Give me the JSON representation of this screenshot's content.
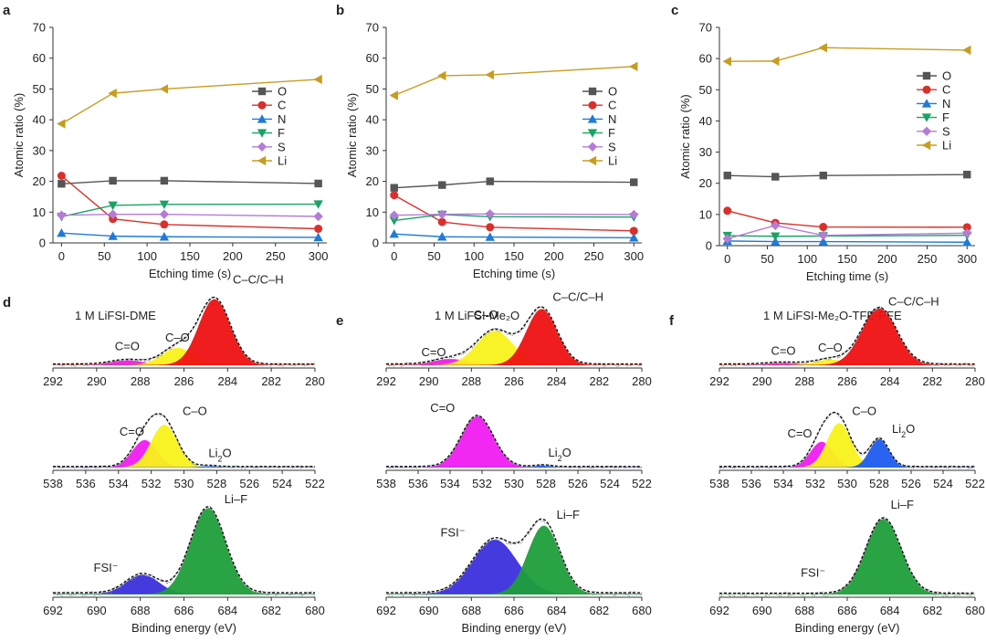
{
  "colors": {
    "O": "#555555",
    "C": "#d9302c",
    "N": "#1f7bd6",
    "F": "#1aa266",
    "S": "#b57cd6",
    "Li": "#c79d1f",
    "yellow": "#f8f21a",
    "red": "#ee1111",
    "magenta": "#f01cf0",
    "blue": "#1e5cf0",
    "green": "#1e9e3a",
    "purpleblue": "#3a2fdc"
  },
  "panels": {
    "a": "a",
    "b": "b",
    "c": "c",
    "d": "d",
    "e": "e",
    "f": "f"
  },
  "chart_data": [
    {
      "id": "a",
      "type": "line",
      "panel_letter": "a",
      "xlabel": "Etching time (s)",
      "ylabel": "Atomic ratio (%)",
      "xlim": [
        -10,
        310
      ],
      "ylim": [
        0,
        70
      ],
      "xticks": [
        "0",
        "50",
        "100",
        "150",
        "200",
        "250",
        "300"
      ],
      "yticks": [
        "0",
        "10",
        "20",
        "30",
        "40",
        "50",
        "60",
        "70"
      ],
      "x": [
        0,
        60,
        120,
        300
      ],
      "legend_position": "right",
      "series": [
        {
          "name": "O",
          "values": [
            19.2,
            20.2,
            20.2,
            19.3
          ]
        },
        {
          "name": "C",
          "values": [
            21.8,
            7.8,
            6.0,
            4.6
          ]
        },
        {
          "name": "N",
          "values": [
            3.2,
            2.2,
            2.0,
            1.8
          ]
        },
        {
          "name": "F",
          "values": [
            8.5,
            12.2,
            12.5,
            12.6
          ]
        },
        {
          "name": "S",
          "values": [
            9.0,
            9.3,
            9.3,
            8.6
          ]
        },
        {
          "name": "Li",
          "values": [
            38.7,
            48.6,
            50.0,
            53.1
          ]
        }
      ]
    },
    {
      "id": "b",
      "type": "line",
      "panel_letter": "b",
      "xlabel": "Etching time (s)",
      "ylabel": "Atomic ratio (%)",
      "xlim": [
        -10,
        310
      ],
      "ylim": [
        0,
        70
      ],
      "xticks": [
        "0",
        "50",
        "100",
        "150",
        "200",
        "250",
        "300"
      ],
      "yticks": [
        "0",
        "10",
        "20",
        "30",
        "40",
        "50",
        "60",
        "70"
      ],
      "x": [
        0,
        60,
        120,
        300
      ],
      "legend_position": "right",
      "series": [
        {
          "name": "O",
          "values": [
            17.9,
            18.8,
            20.0,
            19.7
          ]
        },
        {
          "name": "C",
          "values": [
            15.5,
            6.8,
            5.1,
            3.9
          ]
        },
        {
          "name": "N",
          "values": [
            2.9,
            2.0,
            1.9,
            1.7
          ]
        },
        {
          "name": "F",
          "values": [
            7.3,
            9.2,
            8.5,
            8.4
          ]
        },
        {
          "name": "S",
          "values": [
            9.0,
            9.3,
            9.4,
            9.2
          ]
        },
        {
          "name": "Li",
          "values": [
            47.9,
            54.3,
            54.6,
            57.3
          ]
        }
      ]
    },
    {
      "id": "c",
      "type": "line",
      "panel_letter": "c",
      "xlabel": "Etching time (s)",
      "ylabel": "Atomic ratio (%)",
      "xlim": [
        -10,
        310
      ],
      "ylim": [
        0,
        70
      ],
      "xticks": [
        "0",
        "50",
        "100",
        "150",
        "200",
        "250",
        "300"
      ],
      "yticks": [
        "0",
        "10",
        "20",
        "30",
        "40",
        "50",
        "60",
        "70"
      ],
      "x": [
        0,
        60,
        120,
        300
      ],
      "legend_position": "right",
      "series": [
        {
          "name": "O",
          "values": [
            22.5,
            22.1,
            22.5,
            22.8
          ]
        },
        {
          "name": "C",
          "values": [
            11.2,
            7.3,
            6.0,
            5.9
          ]
        },
        {
          "name": "N",
          "values": [
            1.5,
            1.3,
            1.3,
            1.1
          ]
        },
        {
          "name": "F",
          "values": [
            3.2,
            3.0,
            3.1,
            3.3
          ]
        },
        {
          "name": "S",
          "values": [
            2.2,
            6.5,
            3.3,
            4.0
          ]
        },
        {
          "name": "Li",
          "values": [
            59.1,
            59.2,
            63.5,
            62.7
          ]
        }
      ]
    },
    {
      "id": "d1",
      "type": "xps",
      "panel_letter": "d",
      "title": "1 M LiFSI-DME",
      "xlim": [
        292,
        280
      ],
      "xticks": [
        "292",
        "290",
        "288",
        "286",
        "284",
        "282",
        "280"
      ],
      "baseline": 0.02,
      "peaks": [
        {
          "label": "C=O",
          "center": 288.6,
          "height": 0.07,
          "sigma": 0.75,
          "color": "magenta"
        },
        {
          "label": "C–O",
          "center": 286.3,
          "height": 0.26,
          "sigma": 0.7,
          "color": "yellow"
        },
        {
          "label": "C–C/C–H",
          "center": 284.6,
          "height": 1.0,
          "sigma": 0.72,
          "color": "red"
        }
      ]
    },
    {
      "id": "d2",
      "type": "xps",
      "panel_letter": "",
      "title": "",
      "xlim": [
        538,
        522
      ],
      "xticks": [
        "538",
        "536",
        "534",
        "532",
        "530",
        "528",
        "526",
        "524",
        "522"
      ],
      "baseline": 0.02,
      "peaks": [
        {
          "label": "C=O",
          "center": 532.4,
          "height": 0.48,
          "sigma": 0.75,
          "color": "magenta"
        },
        {
          "label": "C–O",
          "center": 531.2,
          "height": 0.75,
          "sigma": 0.8,
          "color": "yellow"
        },
        {
          "label": "Li2O",
          "center": 528.5,
          "height": 0.02,
          "sigma": 0.5,
          "color": "blue"
        }
      ]
    },
    {
      "id": "d3",
      "type": "xps",
      "panel_letter": "",
      "title": "",
      "xlim": [
        692,
        680
      ],
      "xticks": [
        "692",
        "690",
        "688",
        "686",
        "684",
        "682",
        "680"
      ],
      "baseline": 0.02,
      "peaks": [
        {
          "label": "FSI⁻",
          "center": 687.9,
          "height": 0.22,
          "sigma": 0.75,
          "color": "purpleblue"
        },
        {
          "label": "Li–F",
          "center": 684.9,
          "height": 0.98,
          "sigma": 0.8,
          "color": "green"
        }
      ]
    },
    {
      "id": "e1",
      "type": "xps",
      "panel_letter": "e",
      "title": "1 M LiFSI-Me₂O",
      "xlim": [
        292,
        280
      ],
      "xticks": [
        "292",
        "290",
        "288",
        "286",
        "284",
        "282",
        "280"
      ],
      "baseline": 0.02,
      "peaks": [
        {
          "label": "C=O",
          "center": 289.0,
          "height": 0.09,
          "sigma": 0.8,
          "color": "magenta"
        },
        {
          "label": "C–O",
          "center": 286.9,
          "height": 0.52,
          "sigma": 0.85,
          "color": "yellow"
        },
        {
          "label": "C–C/C–H",
          "center": 284.7,
          "height": 0.85,
          "sigma": 0.72,
          "color": "red"
        }
      ]
    },
    {
      "id": "e2",
      "type": "xps",
      "panel_letter": "",
      "title": "",
      "xlim": [
        538,
        522
      ],
      "xticks": [
        "538",
        "536",
        "534",
        "532",
        "530",
        "528",
        "526",
        "524",
        "522"
      ],
      "baseline": 0.02,
      "peaks": [
        {
          "label": "C=O",
          "center": 532.3,
          "height": 0.9,
          "sigma": 1.0,
          "color": "magenta"
        },
        {
          "label": "Li2O",
          "center": 528.2,
          "height": 0.03,
          "sigma": 0.5,
          "color": "blue"
        }
      ]
    },
    {
      "id": "e3",
      "type": "xps",
      "panel_letter": "",
      "title": "",
      "xlim": [
        692,
        680
      ],
      "xticks": [
        "692",
        "690",
        "688",
        "686",
        "684",
        "682",
        "680"
      ],
      "baseline": 0.02,
      "peaks": [
        {
          "label": "FSI⁻",
          "center": 686.9,
          "height": 0.62,
          "sigma": 1.05,
          "color": "purpleblue"
        },
        {
          "label": "Li–F",
          "center": 684.6,
          "height": 0.78,
          "sigma": 0.75,
          "color": "green"
        }
      ]
    },
    {
      "id": "f1",
      "type": "xps",
      "panel_letter": "f",
      "title": "1 M LiFSI-Me₂O-TFE-PFE",
      "xlim": [
        292,
        280
      ],
      "xticks": [
        "292",
        "290",
        "288",
        "286",
        "284",
        "282",
        "280"
      ],
      "baseline": 0.02,
      "peaks": [
        {
          "label": "C=O",
          "center": 289.0,
          "height": 0.03,
          "sigma": 0.8,
          "color": "magenta"
        },
        {
          "label": "C–O",
          "center": 286.8,
          "height": 0.08,
          "sigma": 0.7,
          "color": "yellow"
        },
        {
          "label": "C–C/C–H",
          "center": 284.5,
          "height": 0.86,
          "sigma": 0.82,
          "color": "red"
        }
      ]
    },
    {
      "id": "f2",
      "type": "xps",
      "panel_letter": "",
      "title": "",
      "xlim": [
        538,
        522
      ],
      "xticks": [
        "538",
        "536",
        "534",
        "532",
        "530",
        "528",
        "526",
        "524",
        "522"
      ],
      "baseline": 0.02,
      "peaks": [
        {
          "label": "C=O",
          "center": 531.6,
          "height": 0.45,
          "sigma": 0.7,
          "color": "magenta"
        },
        {
          "label": "C–O",
          "center": 530.5,
          "height": 0.78,
          "sigma": 0.75,
          "color": "yellow"
        },
        {
          "label": "Li2O",
          "center": 528.0,
          "height": 0.5,
          "sigma": 0.6,
          "color": "blue"
        }
      ]
    },
    {
      "id": "f3",
      "type": "xps",
      "panel_letter": "",
      "title": "",
      "xlabel": "Binding energy (eV)",
      "xlim": [
        692,
        680
      ],
      "xticks": [
        "692",
        "690",
        "688",
        "686",
        "684",
        "682",
        "680"
      ],
      "baseline": 0.015,
      "peaks": [
        {
          "label": "FSI⁻",
          "center": 687.6,
          "height": 0.0,
          "sigma": 0.7,
          "color": "purpleblue"
        },
        {
          "label": "Li–F",
          "center": 684.3,
          "height": 0.86,
          "sigma": 0.82,
          "color": "green"
        }
      ]
    }
  ],
  "xps_xlabel": "Binding energy (eV)"
}
